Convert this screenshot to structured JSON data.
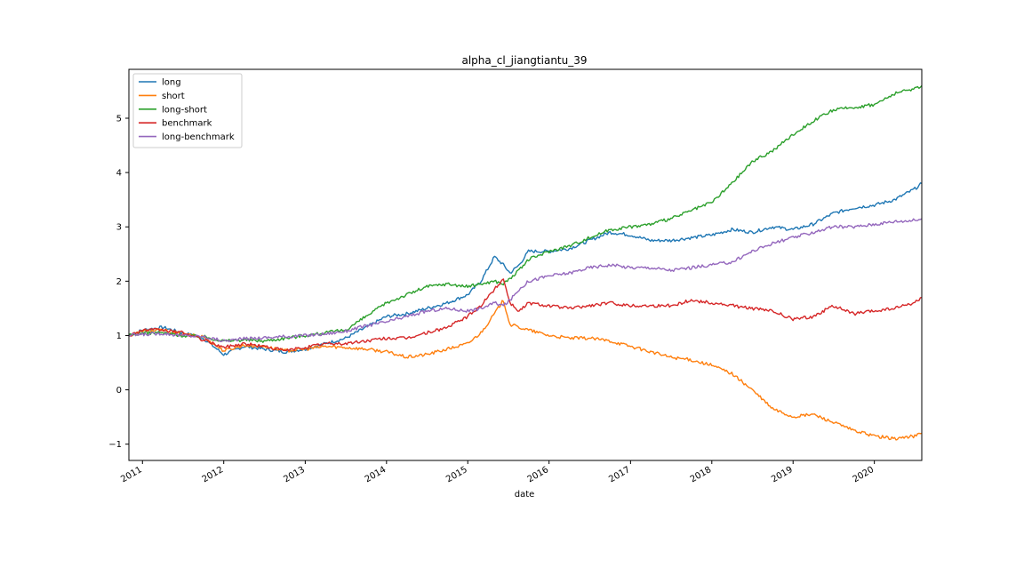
{
  "chart_data": {
    "type": "line",
    "title": "alpha_cl_jiangtiantu_39",
    "xlabel": "date",
    "ylabel": "",
    "xlim": [
      "2010-11-01",
      "2020-08-01"
    ],
    "ylim": [
      -1.3,
      5.9
    ],
    "x_ticks": [
      "2011",
      "2012",
      "2013",
      "2014",
      "2015",
      "2016",
      "2017",
      "2018",
      "2019",
      "2020"
    ],
    "y_ticks": [
      -1,
      0,
      1,
      2,
      3,
      4,
      5
    ],
    "grid": false,
    "legend_position": "upper-left",
    "x": [
      "2010-11-01",
      "2011-01-01",
      "2011-04-01",
      "2011-07-01",
      "2011-10-01",
      "2012-01-01",
      "2012-04-01",
      "2012-07-01",
      "2012-10-01",
      "2013-01-01",
      "2013-04-01",
      "2013-07-01",
      "2013-10-01",
      "2014-01-01",
      "2014-04-01",
      "2014-07-01",
      "2014-10-01",
      "2015-01-01",
      "2015-03-01",
      "2015-05-01",
      "2015-06-10",
      "2015-07-10",
      "2015-08-20",
      "2015-10-01",
      "2016-01-01",
      "2016-04-01",
      "2016-07-01",
      "2016-10-01",
      "2017-01-01",
      "2017-04-01",
      "2017-07-01",
      "2017-10-01",
      "2018-01-01",
      "2018-04-01",
      "2018-07-01",
      "2018-10-01",
      "2019-01-01",
      "2019-04-01",
      "2019-07-01",
      "2019-10-01",
      "2020-01-01",
      "2020-04-01",
      "2020-07-01",
      "2020-08-01"
    ],
    "series": [
      {
        "name": "long",
        "color": "#1f77b4",
        "values": [
          1.0,
          1.1,
          1.15,
          1.05,
          0.95,
          0.65,
          0.8,
          0.75,
          0.7,
          0.75,
          0.85,
          0.95,
          1.15,
          1.35,
          1.4,
          1.5,
          1.6,
          1.75,
          2.0,
          2.45,
          2.3,
          2.15,
          2.3,
          2.55,
          2.55,
          2.6,
          2.75,
          2.9,
          2.85,
          2.75,
          2.75,
          2.8,
          2.85,
          2.95,
          2.9,
          3.0,
          2.95,
          3.05,
          3.25,
          3.35,
          3.4,
          3.5,
          3.7,
          3.8
        ]
      },
      {
        "name": "short",
        "color": "#ff7f0e",
        "values": [
          1.0,
          1.08,
          1.1,
          1.02,
          0.98,
          0.72,
          0.82,
          0.8,
          0.72,
          0.75,
          0.8,
          0.78,
          0.75,
          0.7,
          0.6,
          0.65,
          0.75,
          0.85,
          1.05,
          1.4,
          1.65,
          1.2,
          1.15,
          1.1,
          1.0,
          0.95,
          0.95,
          0.9,
          0.8,
          0.7,
          0.6,
          0.55,
          0.45,
          0.3,
          0.0,
          -0.35,
          -0.5,
          -0.45,
          -0.6,
          -0.75,
          -0.85,
          -0.9,
          -0.85,
          -0.8
        ]
      },
      {
        "name": "long-short",
        "color": "#2ca02c",
        "values": [
          1.0,
          1.05,
          1.05,
          1.0,
          0.98,
          0.9,
          0.92,
          0.9,
          0.95,
          1.0,
          1.05,
          1.1,
          1.35,
          1.6,
          1.75,
          1.9,
          1.95,
          1.9,
          1.95,
          2.0,
          1.95,
          2.05,
          2.2,
          2.4,
          2.55,
          2.65,
          2.8,
          2.95,
          3.0,
          3.05,
          3.15,
          3.3,
          3.45,
          3.8,
          4.2,
          4.4,
          4.7,
          4.95,
          5.15,
          5.2,
          5.25,
          5.45,
          5.55,
          5.6
        ]
      },
      {
        "name": "benchmark",
        "color": "#d62728",
        "values": [
          1.0,
          1.1,
          1.1,
          1.05,
          0.92,
          0.78,
          0.85,
          0.8,
          0.72,
          0.78,
          0.85,
          0.85,
          0.9,
          0.95,
          0.95,
          1.05,
          1.15,
          1.35,
          1.55,
          1.85,
          2.05,
          1.6,
          1.45,
          1.6,
          1.55,
          1.5,
          1.55,
          1.6,
          1.55,
          1.55,
          1.55,
          1.65,
          1.6,
          1.55,
          1.5,
          1.45,
          1.3,
          1.35,
          1.55,
          1.4,
          1.45,
          1.5,
          1.6,
          1.7
        ]
      },
      {
        "name": "long-benchmark",
        "color": "#9467bd",
        "values": [
          1.0,
          1.02,
          1.04,
          1.0,
          0.98,
          0.9,
          0.94,
          0.96,
          0.98,
          1.0,
          1.03,
          1.08,
          1.18,
          1.25,
          1.35,
          1.45,
          1.5,
          1.45,
          1.5,
          1.6,
          1.55,
          1.65,
          1.85,
          2.0,
          2.1,
          2.15,
          2.25,
          2.3,
          2.25,
          2.25,
          2.2,
          2.25,
          2.3,
          2.35,
          2.55,
          2.7,
          2.8,
          2.9,
          3.0,
          3.0,
          3.05,
          3.1,
          3.12,
          3.15
        ]
      }
    ]
  }
}
